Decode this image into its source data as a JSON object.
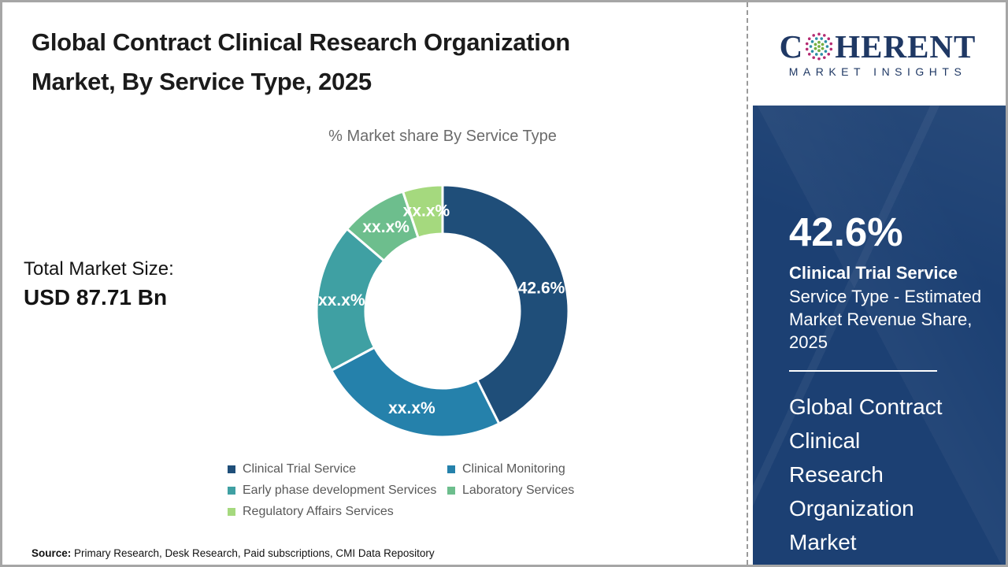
{
  "page": {
    "title": "Global Contract Clinical Research Organization\nMarket, By Service Type, 2025",
    "subtitle": "% Market share By Service Type",
    "total_label": "Total Market Size:",
    "total_value": "USD 87.71 Bn",
    "source_label": "Source:",
    "source_text": " Primary Research, Desk Research, Paid subscriptions, CMI Data Repository"
  },
  "chart_data": {
    "type": "pie",
    "subtype": "donut",
    "title": "% Market share By Service Type",
    "unit": "%",
    "legend_position": "bottom",
    "start_angle_deg": 0,
    "segments": [
      {
        "label": "Clinical Trial Service",
        "display": "42.6%",
        "value": 42.6,
        "color": "#1F4E79"
      },
      {
        "label": "Clinical Monitoring",
        "display": "xx.x%",
        "value": 24.6,
        "color": "#2581AB"
      },
      {
        "label": "Early phase development Services",
        "display": "xx.x%",
        "value": 19.1,
        "color": "#3FA0A3"
      },
      {
        "label": "Laboratory Services",
        "display": "xx.x%",
        "value": 8.6,
        "color": "#6DBE8D"
      },
      {
        "label": "Regulatory Affairs Services",
        "display": "xx.x%",
        "value": 5.1,
        "color": "#A5D97E"
      }
    ]
  },
  "logo": {
    "word_start": "C",
    "word_end": "HERENT",
    "tagline": "MARKET INSIGHTS",
    "navy": "#1F3864",
    "globe_outer": "#B52B72",
    "globe_mid": "#2D8FA5",
    "globe_inner": "#76B041"
  },
  "sidebar": {
    "stat_value": "42.6%",
    "stat_title": "Clinical Trial Service",
    "stat_desc": "Service Type - Estimated\nMarket Revenue Share,\n2025",
    "market_name": "Global Contract\nClinical\nResearch\nOrganization\nMarket",
    "bg_color": "#1C4073"
  }
}
